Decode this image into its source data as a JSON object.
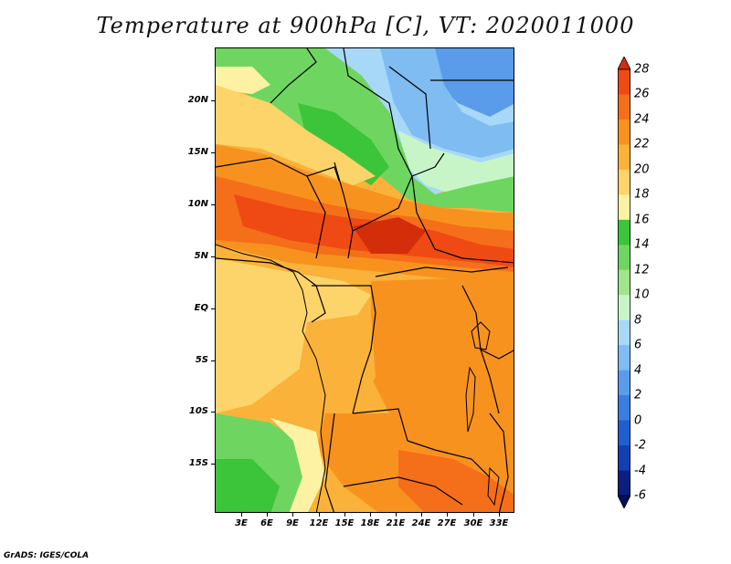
{
  "title": "Temperature at 900hPa [C], VT: 2020011000",
  "footer": "GrADS: IGES/COLA",
  "map": {
    "variable": "Temperature at 900hPa",
    "units": "C",
    "valid_time": "2020011000",
    "lat_ticks": [
      "20N",
      "15N",
      "10N",
      "5N",
      "EQ",
      "5S",
      "10S",
      "15S"
    ],
    "lon_ticks": [
      "3E",
      "6E",
      "9E",
      "12E",
      "15E",
      "18E",
      "21E",
      "24E",
      "27E",
      "30E",
      "33E"
    ]
  },
  "colorbar": {
    "labels": [
      "28",
      "26",
      "24",
      "22",
      "20",
      "18",
      "16",
      "14",
      "12",
      "10",
      "8",
      "6",
      "4",
      "2",
      "0",
      "-2",
      "-4",
      "-6"
    ],
    "colors": [
      "#d32d0a",
      "#ef4a14",
      "#f56e19",
      "#f8921f",
      "#fab23a",
      "#fcd46a",
      "#fdf2a4",
      "#3cc43a",
      "#6ed660",
      "#a0e58c",
      "#c8f5c8",
      "#a8d8f8",
      "#7fbcf2",
      "#5a9cea",
      "#3a7ee0",
      "#1f5fd0",
      "#1340b0",
      "#0b1f82",
      "#040f60"
    ]
  }
}
